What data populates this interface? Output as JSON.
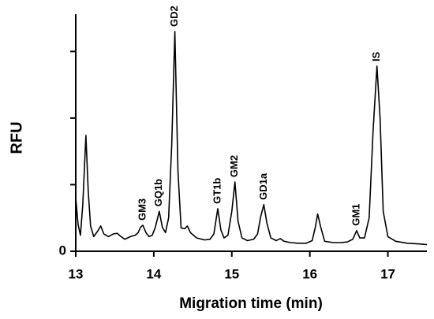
{
  "chart_data": {
    "type": "line",
    "x_label": "Migration time (min)",
    "y_label": "RFU",
    "xlim": [
      13,
      17.5
    ],
    "xticks": [
      13,
      14,
      15,
      16,
      17
    ],
    "ylim": [
      0,
      3.56
    ],
    "yticks": [
      0
    ],
    "yticks_unlabeled": [
      1,
      2,
      3
    ],
    "color": "#000000",
    "x": [
      13.0,
      13.03,
      13.06,
      13.09,
      13.13,
      13.16,
      13.19,
      13.23,
      13.28,
      13.32,
      13.36,
      13.42,
      13.48,
      13.53,
      13.58,
      13.63,
      13.7,
      13.76,
      13.8,
      13.83,
      13.86,
      13.9,
      13.94,
      13.98,
      14.02,
      14.07,
      14.11,
      14.15,
      14.19,
      14.23,
      14.27,
      14.31,
      14.35,
      14.4,
      14.43,
      14.47,
      14.55,
      14.65,
      14.72,
      14.77,
      14.82,
      14.86,
      14.9,
      14.95,
      15.0,
      15.04,
      15.08,
      15.13,
      15.2,
      15.28,
      15.33,
      15.37,
      15.41,
      15.45,
      15.5,
      15.57,
      15.62,
      15.67,
      15.75,
      15.85,
      15.95,
      16.03,
      16.07,
      16.1,
      16.14,
      16.19,
      16.3,
      16.4,
      16.48,
      16.55,
      16.6,
      16.64,
      16.7,
      16.76,
      16.81,
      16.86,
      16.9,
      16.94,
      17.0,
      17.1,
      17.25,
      17.4,
      17.5
    ],
    "values": [
      0.8,
      0.4,
      0.24,
      0.7,
      1.74,
      0.9,
      0.38,
      0.22,
      0.3,
      0.38,
      0.26,
      0.22,
      0.26,
      0.27,
      0.22,
      0.18,
      0.22,
      0.24,
      0.28,
      0.36,
      0.39,
      0.28,
      0.22,
      0.24,
      0.36,
      0.6,
      0.36,
      0.28,
      0.5,
      1.6,
      3.3,
      1.2,
      0.35,
      0.34,
      0.38,
      0.28,
      0.2,
      0.17,
      0.18,
      0.26,
      0.64,
      0.32,
      0.2,
      0.24,
      0.6,
      1.04,
      0.45,
      0.2,
      0.16,
      0.18,
      0.26,
      0.52,
      0.7,
      0.42,
      0.2,
      0.16,
      0.19,
      0.15,
      0.13,
      0.12,
      0.12,
      0.16,
      0.36,
      0.56,
      0.36,
      0.15,
      0.13,
      0.13,
      0.14,
      0.18,
      0.31,
      0.2,
      0.2,
      0.5,
      1.8,
      2.78,
      2.0,
      0.6,
      0.22,
      0.15,
      0.12,
      0.11,
      0.1
    ],
    "annotations": [
      {
        "text": "GM3",
        "x": 13.86,
        "y": 0.39
      },
      {
        "text": "GQ1b",
        "x": 14.07,
        "y": 0.6
      },
      {
        "text": "GD2",
        "x": 14.27,
        "y": 3.3
      },
      {
        "text": "GT1b",
        "x": 14.82,
        "y": 0.64
      },
      {
        "text": "GM2",
        "x": 15.04,
        "y": 1.04
      },
      {
        "text": "GD1a",
        "x": 15.41,
        "y": 0.7
      },
      {
        "text": "GM1",
        "x": 16.6,
        "y": 0.31
      },
      {
        "text": "IS",
        "x": 16.86,
        "y": 2.78
      }
    ]
  }
}
